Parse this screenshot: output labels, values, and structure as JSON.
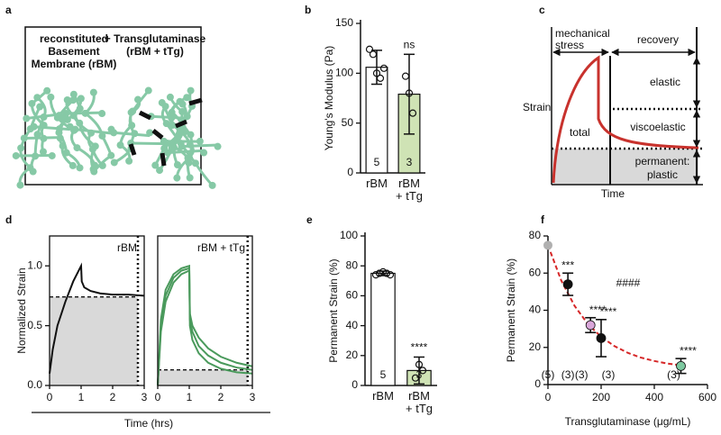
{
  "panel_labels": [
    "a",
    "b",
    "c",
    "d",
    "e",
    "f"
  ],
  "diagram_a": {
    "left_label": [
      "reconstituted",
      "Basement",
      "Membrane (rBM)"
    ],
    "right_label": [
      "+ Transglutaminase",
      "(rBM + tTg)"
    ]
  },
  "diagram_c": {
    "stress_label": [
      "mechanical",
      "stress"
    ],
    "recovery_label": "recovery",
    "y_label": "Strain",
    "x_label": "Time",
    "total_label": "total",
    "elastic_label": "elastic",
    "viscoelastic_label": "viscoelastic",
    "permanent_label": [
      "permanent:",
      "plastic"
    ]
  },
  "chart_data": [
    {
      "type": "bar",
      "ylabel": "Young's Modulus (Pa)",
      "categories": [
        "rBM",
        "rBM\n+ tTg"
      ],
      "values": [
        106,
        79
      ],
      "errors": [
        17,
        40
      ],
      "points": [
        [
          124,
          119,
          100,
          95,
          105
        ],
        [
          97,
          80,
          60
        ]
      ],
      "n_labels": [
        "5",
        "3"
      ],
      "colors": [
        "#ffffff",
        "#cfe3b5"
      ],
      "significance": [
        null,
        "ns"
      ],
      "ylim": [
        0,
        150
      ],
      "yticks": [
        0,
        50,
        100,
        150
      ]
    },
    {
      "type": "line",
      "ylabel": "Normalized Strain",
      "xlabel": "Time (hrs)",
      "label": "rBM",
      "x": [
        0,
        0.1,
        0.25,
        0.5,
        0.75,
        1,
        1.02,
        1.1,
        1.3,
        1.6,
        2,
        2.5,
        3
      ],
      "series": [
        {
          "color": "#111111",
          "values": [
            0.1,
            0.3,
            0.5,
            0.7,
            0.87,
            1.0,
            0.87,
            0.82,
            0.79,
            0.77,
            0.76,
            0.76,
            0.75
          ]
        }
      ],
      "reference_line": 0.74,
      "marker_x": 2.8,
      "xlim": [
        0,
        3
      ],
      "xticks": [
        0,
        1,
        2,
        3
      ],
      "ylim": [
        0,
        1.25
      ],
      "yticks": [
        {
          "value": 0,
          "label": "0.0"
        },
        0.5,
        {
          "value": 1,
          "label": "1.0"
        }
      ]
    },
    {
      "type": "line",
      "label": "rBM + tTg",
      "x": [
        0,
        0.1,
        0.25,
        0.5,
        0.75,
        1,
        1.02,
        1.1,
        1.3,
        1.6,
        2,
        2.5,
        3
      ],
      "series": [
        {
          "color": "#4a9a5c",
          "values": [
            0,
            0.55,
            0.8,
            0.93,
            0.98,
            1.0,
            0.5,
            0.38,
            0.27,
            0.19,
            0.14,
            0.11,
            0.1
          ]
        },
        {
          "color": "#4a9a5c",
          "values": [
            0,
            0.5,
            0.75,
            0.9,
            0.96,
            0.98,
            0.55,
            0.45,
            0.33,
            0.25,
            0.19,
            0.15,
            0.13
          ]
        },
        {
          "color": "#4a9a5c",
          "values": [
            0,
            0.45,
            0.7,
            0.86,
            0.93,
            0.96,
            0.6,
            0.5,
            0.4,
            0.31,
            0.24,
            0.19,
            0.16
          ]
        }
      ],
      "reference_line": 0.13,
      "marker_x": 2.85,
      "xlim": [
        0,
        3
      ],
      "xticks": [
        0,
        1,
        2,
        3
      ],
      "ylim": [
        0,
        1.25
      ]
    },
    {
      "type": "bar",
      "ylabel": "Permanent Strain (%)",
      "categories": [
        "rBM",
        "rBM\n+ tTg"
      ],
      "values": [
        75,
        10
      ],
      "errors": [
        1.5,
        9
      ],
      "points": [
        [
          74,
          75,
          76,
          75,
          74
        ],
        [
          5,
          14,
          10
        ]
      ],
      "n_labels": [
        "5",
        "3"
      ],
      "colors": [
        "#ffffff",
        "#cfe3b5"
      ],
      "significance": [
        null,
        "****"
      ],
      "ylim": [
        0,
        100
      ],
      "yticks": [
        0,
        20,
        40,
        60,
        80,
        100
      ]
    },
    {
      "type": "scatter",
      "ylabel": "Permanent Strain (%)",
      "xlabel": "Transglutaminase (μg/mL)",
      "x": [
        0,
        75,
        160,
        200,
        500
      ],
      "values": [
        75,
        54,
        32,
        25,
        10
      ],
      "errors": [
        0,
        6,
        4,
        10,
        4
      ],
      "colors": [
        "#b0b0b0",
        "#111111",
        "#d9a6d9",
        "#111111",
        "#7dc9a0"
      ],
      "significance": [
        null,
        "***",
        "****",
        "****",
        "****"
      ],
      "n_labels": [
        "(5)",
        "(3)",
        "(3)",
        "(3)",
        "(3)"
      ],
      "annotation": "####",
      "fit": {
        "color": "#d62728",
        "x": [
          0,
          50,
          100,
          150,
          200,
          250,
          300,
          350,
          400,
          450,
          500
        ],
        "values": [
          75,
          56.0,
          42.4,
          32.6,
          25.7,
          20.7,
          17.1,
          14.5,
          12.7,
          11.3,
          10.4
        ]
      },
      "xlim": [
        0,
        600
      ],
      "xticks": [
        0,
        200,
        400,
        600
      ],
      "ylim": [
        0,
        80
      ],
      "yticks": [
        0,
        20,
        40,
        60,
        80
      ]
    }
  ]
}
